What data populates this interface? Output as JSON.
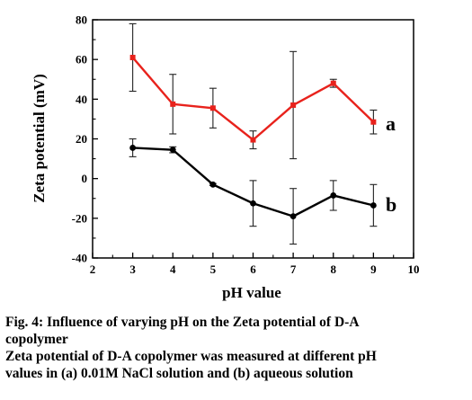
{
  "chart_data": {
    "type": "line",
    "xlabel": "pH value",
    "ylabel": "Zeta potential (mV)",
    "xlim": [
      2,
      10
    ],
    "ylim": [
      -40,
      80
    ],
    "x_ticks": [
      2,
      3,
      4,
      5,
      6,
      7,
      8,
      9,
      10
    ],
    "y_ticks": [
      -40,
      -20,
      0,
      20,
      40,
      60,
      80
    ],
    "grid": false,
    "legend": "none",
    "series": [
      {
        "name": "a",
        "color": "#e8221c",
        "x": [
          3,
          4,
          5,
          6,
          7,
          8,
          9
        ],
        "y": [
          61,
          37.5,
          35.5,
          19.5,
          37,
          48,
          28.5
        ],
        "error": [
          17,
          15,
          10,
          4.5,
          27,
          2,
          6
        ]
      },
      {
        "name": "b",
        "color": "#000000",
        "x": [
          3,
          4,
          5,
          6,
          7,
          8,
          9
        ],
        "y": [
          15.5,
          14.5,
          -3,
          -12.5,
          -19,
          -8.5,
          -13.5
        ],
        "error": [
          4.5,
          1.5,
          0.5,
          11.5,
          14,
          7.5,
          10.5
        ]
      }
    ]
  },
  "caption": {
    "line1": "Fig. 4: Influence of varying pH on the Zeta potential of D-A",
    "line2": "copolymer",
    "line3": "Zeta potential of D-A copolymer was measured at different pH",
    "line4": "values in (a) 0.01M NaCl solution and (b) aqueous solution"
  }
}
